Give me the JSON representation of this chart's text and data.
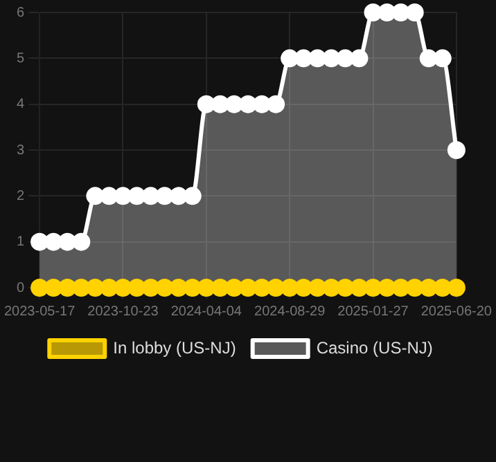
{
  "chart_data": {
    "type": "area",
    "categories": [
      "2023-05-17",
      null,
      null,
      null,
      null,
      null,
      "2023-10-23",
      null,
      null,
      null,
      null,
      null,
      "2024-04-04",
      null,
      null,
      null,
      null,
      null,
      "2024-08-29",
      null,
      null,
      null,
      null,
      null,
      "2025-01-27",
      null,
      null,
      null,
      null,
      null,
      "2025-06-20"
    ],
    "series": [
      {
        "name": "In lobby (US-NJ)",
        "type": "line",
        "color": "#ffd200",
        "values": [
          0,
          0,
          0,
          0,
          0,
          0,
          0,
          0,
          0,
          0,
          0,
          0,
          0,
          0,
          0,
          0,
          0,
          0,
          0,
          0,
          0,
          0,
          0,
          0,
          0,
          0,
          0,
          0,
          0,
          0,
          0
        ]
      },
      {
        "name": "Casino (US-NJ)",
        "color": "#ffffff",
        "values": [
          1,
          1,
          1,
          1,
          2,
          2,
          2,
          2,
          2,
          2,
          2,
          2,
          4,
          4,
          4,
          4,
          4,
          4,
          5,
          5,
          5,
          5,
          5,
          5,
          6,
          6,
          6,
          6,
          5,
          5,
          3
        ]
      }
    ],
    "ylim": [
      0,
      6
    ],
    "yticks": [
      0,
      1,
      2,
      3,
      4,
      5,
      6
    ],
    "grid": true,
    "legend": "bottom",
    "marker": "circle"
  }
}
